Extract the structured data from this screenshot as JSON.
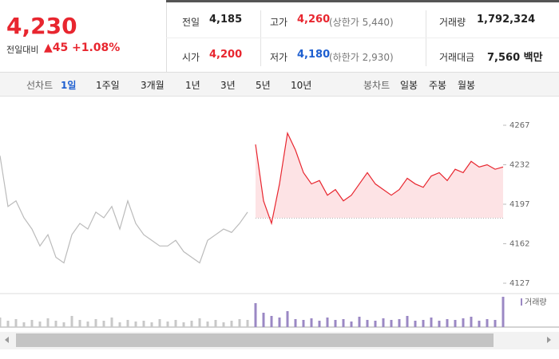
{
  "header": {
    "price": "4,230",
    "change_label": "전일대비",
    "change": "45",
    "change_pct": "+1.08%",
    "stats": [
      [
        {
          "label": "전일",
          "value": "4,185"
        },
        {
          "label": "고가",
          "value": "4,260",
          "extra": "(상한가 5,440)"
        },
        {
          "label": "거래량",
          "value": "1,792,324"
        }
      ],
      [
        {
          "label": "시가",
          "value": "4,200"
        },
        {
          "label": "저가",
          "value": "4,180",
          "extra": "(하한가 2,930)"
        },
        {
          "label": "거래대금",
          "value": "7,560 백만"
        }
      ]
    ]
  },
  "toolbar": {
    "line_label": "선차트",
    "line_ranges": [
      "1일",
      "1주일",
      "3개월",
      "1년",
      "3년",
      "5년",
      "10년"
    ],
    "candle_label": "봉차트",
    "candle_ranges": [
      "일봉",
      "주봉",
      "월봉"
    ]
  },
  "chart_data": [
    {
      "type": "line",
      "categories": [
        null,
        null,
        null,
        null,
        null,
        null,
        null,
        null,
        null,
        null,
        null,
        null,
        null,
        null,
        null,
        null,
        null,
        null,
        null,
        null,
        null,
        null,
        null,
        null,
        null,
        null,
        null,
        null,
        null,
        null,
        null,
        null,
        null,
        null,
        null,
        null,
        null,
        null,
        null,
        null,
        null,
        null,
        null,
        null,
        null,
        null,
        null,
        null,
        null,
        null,
        null,
        null,
        null,
        null,
        null,
        null,
        null,
        null,
        null,
        null,
        null,
        null,
        null,
        null
      ],
      "baseline": 4185,
      "ylim": [
        4127,
        4267
      ],
      "yticks": [
        4127,
        4162,
        4197,
        4232,
        4267
      ],
      "grid": false,
      "series": [
        {
          "color": "#bbbbbb",
          "values": [
            4240,
            4195,
            4200,
            4185,
            4175,
            4160,
            4170,
            4150,
            4145,
            4170,
            4180,
            4175,
            4190,
            4185,
            4195,
            4175,
            4200,
            4180,
            4170,
            4165,
            4160,
            4160,
            4165,
            4155,
            4150,
            4145,
            4165,
            4170,
            4175,
            4172,
            4180,
            4190,
            null,
            null,
            null,
            null,
            null,
            null,
            null,
            null,
            null,
            null,
            null,
            null,
            null,
            null,
            null,
            null,
            null,
            null,
            null,
            null,
            null,
            null,
            null,
            null,
            null,
            null,
            null,
            null,
            null,
            null,
            null,
            null
          ]
        },
        {
          "color": "#e8262f",
          "fill": "#fde3e5",
          "values": [
            null,
            null,
            null,
            null,
            null,
            null,
            null,
            null,
            null,
            null,
            null,
            null,
            null,
            null,
            null,
            null,
            null,
            null,
            null,
            null,
            null,
            null,
            null,
            null,
            null,
            null,
            null,
            null,
            null,
            null,
            null,
            null,
            4250,
            4200,
            4180,
            4215,
            4260,
            4245,
            4225,
            4215,
            4218,
            4205,
            4210,
            4200,
            4205,
            4215,
            4225,
            4215,
            4210,
            4205,
            4210,
            4220,
            4215,
            4212,
            4222,
            4225,
            4218,
            4228,
            4225,
            4235,
            4230,
            4232,
            4228,
            4230
          ]
        }
      ]
    },
    {
      "type": "bar",
      "categories": [
        null,
        null,
        null,
        null,
        null,
        null,
        null,
        null,
        null,
        null,
        null,
        null,
        null,
        null,
        null,
        null,
        null,
        null,
        null,
        null,
        null,
        null,
        null,
        null,
        null,
        null,
        null,
        null,
        null,
        null,
        null,
        null,
        null,
        null,
        null,
        null,
        null,
        null,
        null,
        null,
        null,
        null,
        null,
        null,
        null,
        null,
        null,
        null,
        null,
        null,
        null,
        null,
        null,
        null,
        null,
        null,
        null,
        null,
        null,
        null,
        null,
        null,
        null,
        null
      ],
      "series": [
        {
          "name": "거래량",
          "color": "#9b88c4",
          "prev_color": "#c8c8c8",
          "values": [
            12,
            8,
            10,
            6,
            9,
            7,
            11,
            8,
            6,
            14,
            9,
            7,
            10,
            8,
            12,
            6,
            9,
            7,
            8,
            6,
            10,
            7,
            9,
            6,
            8,
            11,
            7,
            9,
            6,
            8,
            10,
            9,
            30,
            18,
            14,
            12,
            20,
            10,
            9,
            11,
            8,
            12,
            9,
            10,
            7,
            13,
            9,
            8,
            11,
            9,
            10,
            14,
            8,
            9,
            12,
            8,
            10,
            9,
            11,
            13,
            8,
            10,
            9,
            38
          ]
        }
      ]
    }
  ]
}
